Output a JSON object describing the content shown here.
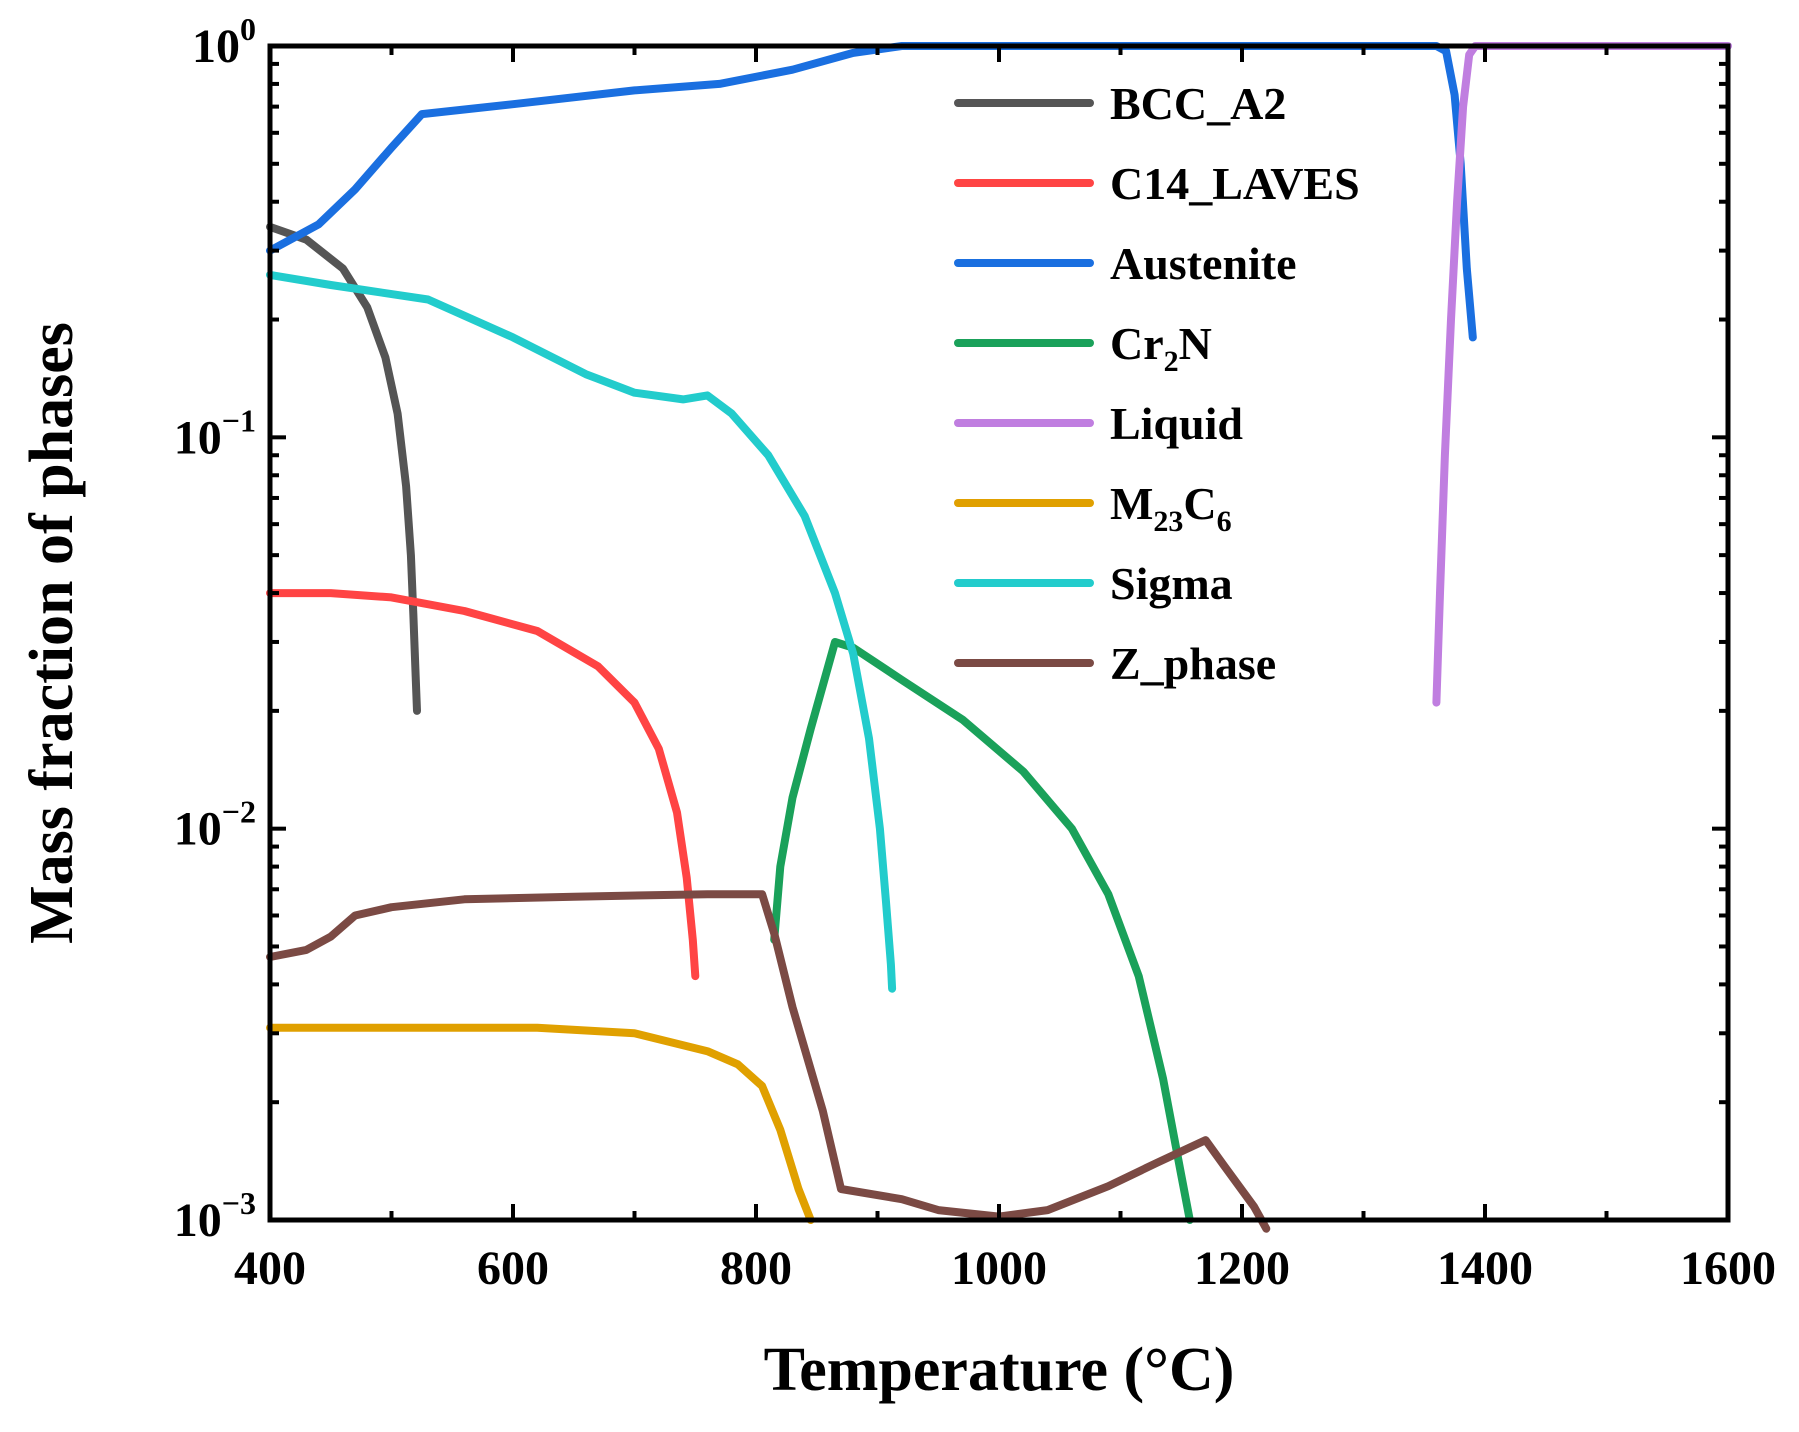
{
  "chart_data": {
    "type": "line",
    "title": "",
    "xlabel": "Temperature (°C)",
    "ylabel": "Mass fraction of phases",
    "xlim": [
      400,
      1600
    ],
    "ylim": [
      0.001,
      1
    ],
    "yscale": "log",
    "grid": false,
    "legend_position": "top-right",
    "x_ticks": [
      {
        "value": 400,
        "label": "400"
      },
      {
        "value": 600,
        "label": "600"
      },
      {
        "value": 800,
        "label": "800"
      },
      {
        "value": 1000,
        "label": "1000"
      },
      {
        "value": 1200,
        "label": "1200"
      },
      {
        "value": 1400,
        "label": "1400"
      },
      {
        "value": 1600,
        "label": "1600"
      }
    ],
    "y_ticks": [
      {
        "value": 1,
        "base": "10",
        "exp": "0"
      },
      {
        "value": 0.1,
        "base": "10",
        "exp": "−1"
      },
      {
        "value": 0.01,
        "base": "10",
        "exp": "−2"
      },
      {
        "value": 0.001,
        "base": "10",
        "exp": "−3"
      }
    ],
    "series": [
      {
        "name": "BCC_A2",
        "label_main": "BCC_A2",
        "label_sub": "",
        "label_tail": "",
        "color": "#555555",
        "points": [
          [
            400,
            0.345
          ],
          [
            430,
            0.32
          ],
          [
            460,
            0.27
          ],
          [
            480,
            0.215
          ],
          [
            495,
            0.16
          ],
          [
            505,
            0.115
          ],
          [
            512,
            0.075
          ],
          [
            516,
            0.05
          ],
          [
            518,
            0.035
          ],
          [
            520,
            0.024
          ],
          [
            521,
            0.02
          ]
        ]
      },
      {
        "name": "C14_LAVES",
        "label_main": "C14_LAVES",
        "label_sub": "",
        "label_tail": "",
        "color": "#ff4444",
        "points": [
          [
            400,
            0.04
          ],
          [
            450,
            0.04
          ],
          [
            500,
            0.039
          ],
          [
            560,
            0.036
          ],
          [
            620,
            0.032
          ],
          [
            670,
            0.026
          ],
          [
            700,
            0.021
          ],
          [
            720,
            0.016
          ],
          [
            735,
            0.011
          ],
          [
            743,
            0.0075
          ],
          [
            748,
            0.0052
          ],
          [
            750,
            0.0042
          ]
        ]
      },
      {
        "name": "Austenite",
        "label_main": "Austenite",
        "label_sub": "",
        "label_tail": "",
        "color": "#1a6fe0",
        "points": [
          [
            400,
            0.3
          ],
          [
            440,
            0.35
          ],
          [
            470,
            0.43
          ],
          [
            500,
            0.55
          ],
          [
            525,
            0.67
          ],
          [
            600,
            0.71
          ],
          [
            700,
            0.77
          ],
          [
            770,
            0.8
          ],
          [
            830,
            0.87
          ],
          [
            880,
            0.96
          ],
          [
            920,
            1.0
          ],
          [
            1300,
            1.0
          ],
          [
            1360,
            1.0
          ],
          [
            1368,
            0.97
          ],
          [
            1375,
            0.75
          ],
          [
            1380,
            0.5
          ],
          [
            1385,
            0.27
          ],
          [
            1390,
            0.18
          ]
        ]
      },
      {
        "name": "Cr2N",
        "label_main": "Cr",
        "label_sub": "2",
        "label_tail": "N",
        "color": "#1aa15a",
        "points": [
          [
            815,
            0.0052
          ],
          [
            820,
            0.008
          ],
          [
            830,
            0.012
          ],
          [
            845,
            0.018
          ],
          [
            865,
            0.03
          ],
          [
            880,
            0.029
          ],
          [
            920,
            0.024
          ],
          [
            970,
            0.019
          ],
          [
            1020,
            0.014
          ],
          [
            1060,
            0.01
          ],
          [
            1090,
            0.0068
          ],
          [
            1115,
            0.0042
          ],
          [
            1135,
            0.0023
          ],
          [
            1150,
            0.0013
          ],
          [
            1157,
            0.001
          ]
        ]
      },
      {
        "name": "Liquid",
        "label_main": "Liquid",
        "label_sub": "",
        "label_tail": "",
        "color": "#c07ee0",
        "points": [
          [
            1360,
            0.021
          ],
          [
            1363,
            0.04
          ],
          [
            1367,
            0.09
          ],
          [
            1372,
            0.2
          ],
          [
            1377,
            0.4
          ],
          [
            1382,
            0.7
          ],
          [
            1387,
            0.95
          ],
          [
            1392,
            1.0
          ],
          [
            1600,
            1.0
          ]
        ]
      },
      {
        "name": "M23C6",
        "label_main": "M",
        "label_sub": "23",
        "label_tail": "C6",
        "color": "#e0a000",
        "points": [
          [
            400,
            0.0031
          ],
          [
            500,
            0.0031
          ],
          [
            620,
            0.0031
          ],
          [
            700,
            0.003
          ],
          [
            760,
            0.0027
          ],
          [
            785,
            0.0025
          ],
          [
            805,
            0.0022
          ],
          [
            820,
            0.0017
          ],
          [
            835,
            0.0012
          ],
          [
            845,
            0.001
          ]
        ]
      },
      {
        "name": "Sigma",
        "label_main": "Sigma",
        "label_sub": "",
        "label_tail": "",
        "color": "#22cccc",
        "points": [
          [
            400,
            0.26
          ],
          [
            450,
            0.245
          ],
          [
            530,
            0.225
          ],
          [
            600,
            0.18
          ],
          [
            660,
            0.145
          ],
          [
            700,
            0.13
          ],
          [
            740,
            0.125
          ],
          [
            760,
            0.128
          ],
          [
            780,
            0.115
          ],
          [
            810,
            0.09
          ],
          [
            840,
            0.063
          ],
          [
            865,
            0.04
          ],
          [
            880,
            0.028
          ],
          [
            893,
            0.017
          ],
          [
            902,
            0.01
          ],
          [
            907,
            0.0065
          ],
          [
            911,
            0.0045
          ],
          [
            912,
            0.0039
          ]
        ]
      },
      {
        "name": "Z_phase",
        "label_main": "Z_phase",
        "label_sub": "",
        "label_tail": "",
        "color": "#7b4a44",
        "points": [
          [
            400,
            0.0047
          ],
          [
            430,
            0.0049
          ],
          [
            450,
            0.0053
          ],
          [
            470,
            0.006
          ],
          [
            500,
            0.0063
          ],
          [
            560,
            0.0066
          ],
          [
            650,
            0.0067
          ],
          [
            760,
            0.0068
          ],
          [
            805,
            0.0068
          ],
          [
            815,
            0.0054
          ],
          [
            830,
            0.0035
          ],
          [
            855,
            0.0019
          ],
          [
            870,
            0.0012
          ],
          [
            920,
            0.00113
          ],
          [
            950,
            0.00106
          ],
          [
            1000,
            0.00102
          ],
          [
            1040,
            0.00106
          ],
          [
            1090,
            0.00122
          ],
          [
            1130,
            0.0014
          ],
          [
            1170,
            0.0016
          ],
          [
            1185,
            0.00138
          ],
          [
            1210,
            0.00108
          ],
          [
            1220,
            0.00095
          ]
        ]
      }
    ]
  }
}
